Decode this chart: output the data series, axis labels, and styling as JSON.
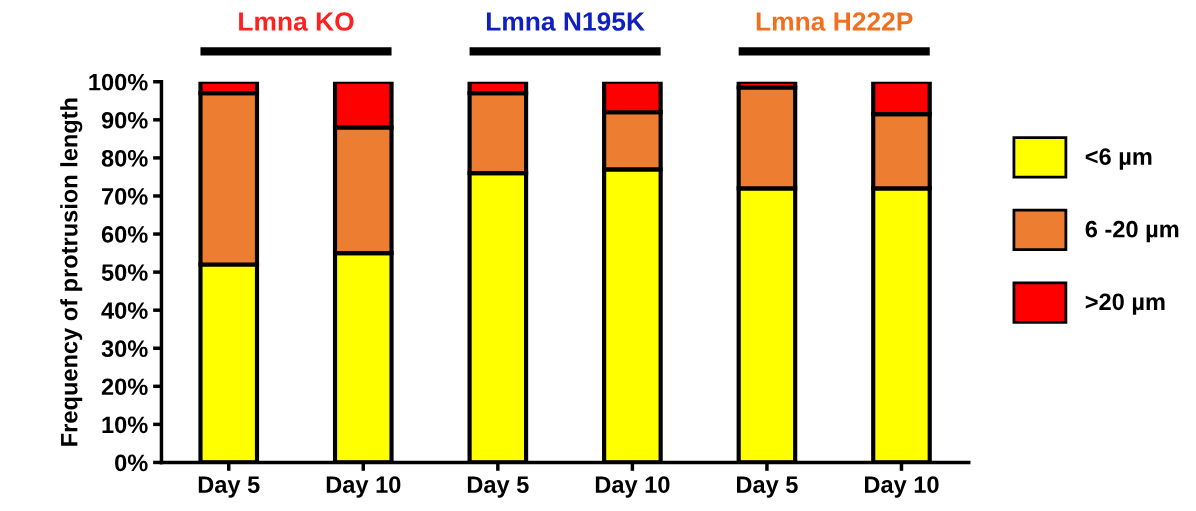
{
  "chart_data": {
    "type": "bar",
    "stacked": true,
    "ylabel": "Frequency of protrusion length",
    "categories": [
      "Day 5",
      "Day 10",
      "Day 5",
      "Day 10",
      "Day 5",
      "Day 10"
    ],
    "series": [
      {
        "name": "<6 µm",
        "color": "#ffff00",
        "values": [
          52,
          55,
          76,
          77,
          72,
          72
        ]
      },
      {
        "name": "6 -20 µm",
        "color": "#ed7d31",
        "values": [
          45,
          33,
          21,
          15,
          26.5,
          19.5
        ]
      },
      {
        "name": ">20 µm",
        "color": "#ff0000",
        "values": [
          3,
          12,
          3,
          8,
          1.5,
          8.5
        ]
      }
    ],
    "ylim": [
      0,
      100
    ],
    "yticks": [
      {
        "value": 0,
        "label": "0%"
      },
      {
        "value": 10,
        "label": "10%"
      },
      {
        "value": 20,
        "label": "20%"
      },
      {
        "value": 30,
        "label": "30%"
      },
      {
        "value": 40,
        "label": "40%"
      },
      {
        "value": 50,
        "label": "50%"
      },
      {
        "value": 60,
        "label": "60%"
      },
      {
        "value": 70,
        "label": "70%"
      },
      {
        "value": 80,
        "label": "80%"
      },
      {
        "value": 90,
        "label": "90%"
      },
      {
        "value": 100,
        "label": "100%"
      }
    ],
    "annotations": [
      "Lmna KO",
      "Lmna N195K",
      "Lmna H222P"
    ],
    "legend": "right",
    "grid": false
  }
}
